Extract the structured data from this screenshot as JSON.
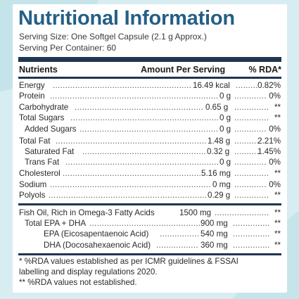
{
  "title": "Nutritional Information",
  "serving_size": "Serving Size: One Softgel Capsule (2.1 g Approx.)",
  "servings_per_container": "Serving Per Container: 60",
  "columns": {
    "nutrients": "Nutrients",
    "amount": "Amount Per Serving",
    "rda": "% RDA*"
  },
  "rows": [
    {
      "name": "Energy",
      "amount": "16.49 kcal",
      "rda": "0.82%"
    },
    {
      "name": "Protein",
      "amount": "0 g",
      "rda": "0%"
    },
    {
      "name": "Carbohydrate",
      "amount": "0.65 g",
      "rda": "**"
    },
    {
      "name": "Total Sugars",
      "amount": "0 g",
      "rda": "**"
    },
    {
      "name": "Added Sugars",
      "amount": "0 g",
      "rda": "0%"
    },
    {
      "name": "Total Fat",
      "amount": "1.48 g",
      "rda": "2.21%"
    },
    {
      "name": "Saturated Fat",
      "amount": "0.32 g",
      "rda": "1.45%"
    },
    {
      "name": "Trans Fat",
      "amount": "0 g",
      "rda": "0%"
    },
    {
      "name": "Cholesterol",
      "amount": "5.16 mg",
      "rda": "**"
    },
    {
      "name": "Sodium",
      "amount": "0 mg",
      "rda": "0%"
    },
    {
      "name": "Polyols",
      "amount": "0.29 g",
      "rda": "**"
    }
  ],
  "fish_oil": [
    {
      "name": "Fish Oil, Rich in Omega-3 Fatty Acids",
      "amount": "1500 mg",
      "rda": "**"
    },
    {
      "name": "Total EPA + DHA",
      "amount": "900 mg",
      "rda": "**"
    },
    {
      "name": "EPA (Eicosapentaenoic Acid)",
      "amount": "540 mg",
      "rda": "**"
    },
    {
      "name": "DHA (Docosahexaenoic Acid)",
      "amount": "360 mg",
      "rda": "**"
    }
  ],
  "footnotes": [
    "* %RDA values established as per ICMR guidelines & FSSAI",
    "labelling and display regulations 2020.",
    "** %RDA values not established."
  ]
}
